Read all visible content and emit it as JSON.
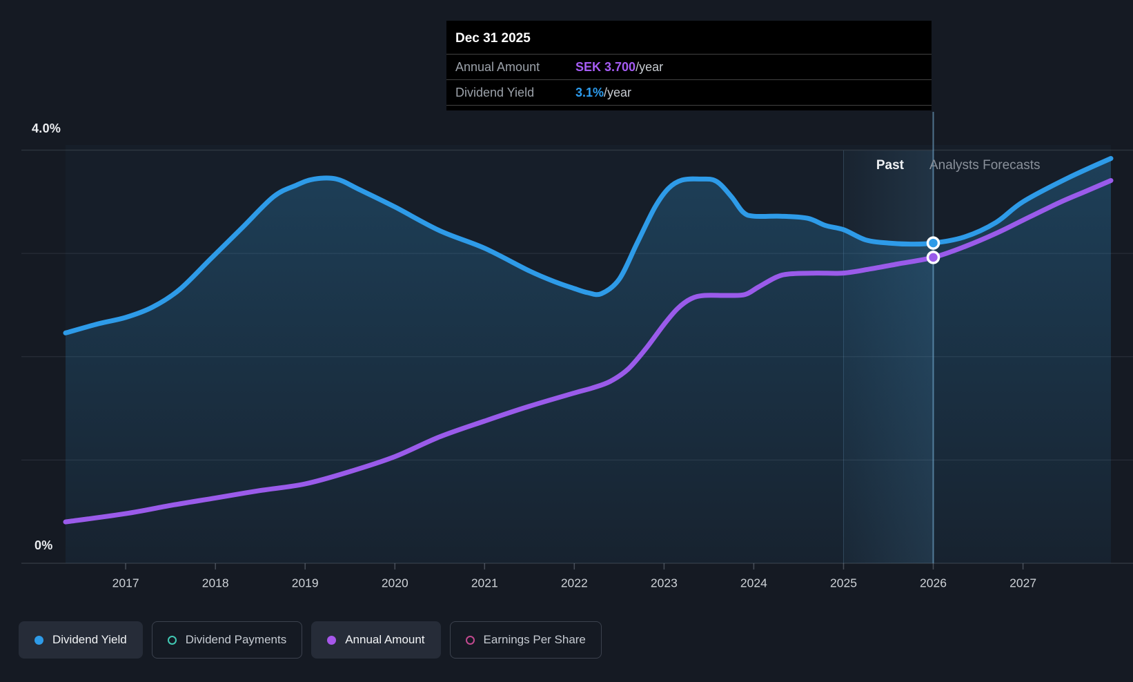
{
  "tooltip": {
    "title": "Dec 31 2025",
    "rows": [
      {
        "label": "Annual Amount",
        "value": "SEK 3.700",
        "suffix": "/year",
        "color": "#A55CF4"
      },
      {
        "label": "Dividend Yield",
        "value": "3.1%",
        "suffix": "/year",
        "color": "#2D9CEE"
      }
    ]
  },
  "chart_data": {
    "type": "area",
    "title": "Dividend history and forecast",
    "x_range": [
      2016.33,
      2027.98
    ],
    "x_ticks": [
      "2017",
      "2018",
      "2019",
      "2020",
      "2021",
      "2022",
      "2023",
      "2024",
      "2025",
      "2026",
      "2027"
    ],
    "x_tick_years": [
      2017,
      2018,
      2019,
      2020,
      2021,
      2022,
      2023,
      2024,
      2025,
      2026,
      2027
    ],
    "grid": true,
    "yield_axis": {
      "min": 0,
      "max": 4.05,
      "gridline_values": [
        4,
        3,
        2,
        1,
        0
      ],
      "top_label": "4.0%",
      "bottom_label": "0%"
    },
    "amount_axis": {
      "min": 0,
      "max": 5.06
    },
    "divider": {
      "x": 2026,
      "past_label": "Past",
      "forecast_label": "Analysts Forecasts"
    },
    "hover_band": {
      "from": 2025,
      "to": 2026
    },
    "series": [
      {
        "name": "Dividend Yield",
        "axis": "yield",
        "unit": "%",
        "color": "#2E9BE8",
        "fill": true,
        "points": [
          [
            2016.33,
            2.23
          ],
          [
            2016.7,
            2.32
          ],
          [
            2017,
            2.38
          ],
          [
            2017.3,
            2.48
          ],
          [
            2017.6,
            2.65
          ],
          [
            2017.95,
            2.95
          ],
          [
            2018.3,
            3.25
          ],
          [
            2018.65,
            3.55
          ],
          [
            2018.9,
            3.66
          ],
          [
            2019.1,
            3.72
          ],
          [
            2019.35,
            3.72
          ],
          [
            2019.6,
            3.62
          ],
          [
            2020,
            3.45
          ],
          [
            2020.5,
            3.22
          ],
          [
            2021,
            3.05
          ],
          [
            2021.5,
            2.83
          ],
          [
            2021.8,
            2.72
          ],
          [
            2022,
            2.66
          ],
          [
            2022.15,
            2.62
          ],
          [
            2022.3,
            2.61
          ],
          [
            2022.5,
            2.75
          ],
          [
            2022.7,
            3.1
          ],
          [
            2022.9,
            3.45
          ],
          [
            2023.05,
            3.63
          ],
          [
            2023.2,
            3.71
          ],
          [
            2023.4,
            3.72
          ],
          [
            2023.58,
            3.7
          ],
          [
            2023.75,
            3.55
          ],
          [
            2023.88,
            3.4
          ],
          [
            2024,
            3.36
          ],
          [
            2024.3,
            3.36
          ],
          [
            2024.6,
            3.34
          ],
          [
            2024.8,
            3.27
          ],
          [
            2025,
            3.23
          ],
          [
            2025.25,
            3.13
          ],
          [
            2025.5,
            3.1
          ],
          [
            2025.75,
            3.09
          ],
          [
            2026,
            3.1
          ],
          [
            2026.35,
            3.16
          ],
          [
            2026.7,
            3.3
          ],
          [
            2027,
            3.5
          ],
          [
            2027.5,
            3.73
          ],
          [
            2027.98,
            3.92
          ]
        ]
      },
      {
        "name": "Annual Amount",
        "axis": "amount",
        "unit": "SEK",
        "color": "#9A5BEA",
        "fill": false,
        "points": [
          [
            2016.33,
            0.5
          ],
          [
            2017,
            0.6
          ],
          [
            2017.5,
            0.7
          ],
          [
            2018,
            0.79
          ],
          [
            2018.5,
            0.88
          ],
          [
            2019,
            0.96
          ],
          [
            2019.5,
            1.11
          ],
          [
            2020,
            1.29
          ],
          [
            2020.5,
            1.53
          ],
          [
            2021,
            1.72
          ],
          [
            2021.5,
            1.9
          ],
          [
            2022,
            2.06
          ],
          [
            2022.2,
            2.12
          ],
          [
            2022.4,
            2.2
          ],
          [
            2022.6,
            2.35
          ],
          [
            2022.8,
            2.6
          ],
          [
            2023,
            2.89
          ],
          [
            2023.15,
            3.08
          ],
          [
            2023.3,
            3.2
          ],
          [
            2023.45,
            3.24
          ],
          [
            2023.7,
            3.24
          ],
          [
            2023.9,
            3.25
          ],
          [
            2024.05,
            3.34
          ],
          [
            2024.25,
            3.46
          ],
          [
            2024.4,
            3.5
          ],
          [
            2024.7,
            3.51
          ],
          [
            2025,
            3.51
          ],
          [
            2025.3,
            3.56
          ],
          [
            2025.6,
            3.62
          ],
          [
            2026,
            3.7
          ],
          [
            2026.35,
            3.83
          ],
          [
            2026.7,
            3.99
          ],
          [
            2027,
            4.15
          ],
          [
            2027.4,
            4.36
          ],
          [
            2027.7,
            4.5
          ],
          [
            2027.98,
            4.63
          ]
        ]
      }
    ],
    "markers": [
      {
        "series": "Dividend Yield",
        "x": 2026,
        "value": 3.1,
        "color": "#2E9BE8"
      },
      {
        "series": "Annual Amount",
        "x": 2026,
        "value": 3.7,
        "color": "#9A5BEA"
      }
    ]
  },
  "legend": {
    "items": [
      {
        "label": "Dividend Yield",
        "color": "#2E9BE8",
        "active": true
      },
      {
        "label": "Dividend Payments",
        "color": "#41C9B4",
        "active": false
      },
      {
        "label": "Annual Amount",
        "color": "#A757EA",
        "active": true
      },
      {
        "label": "Earnings Per Share",
        "color": "#C2498F",
        "active": false
      }
    ]
  },
  "colors": {
    "background": "#151A23",
    "gridline": "rgba(165,178,192,0.16)",
    "axis_line": "rgba(165,178,192,0.28)",
    "divider_line": "rgba(125,185,225,0.55)",
    "tick_label": "#CDD1D6"
  }
}
